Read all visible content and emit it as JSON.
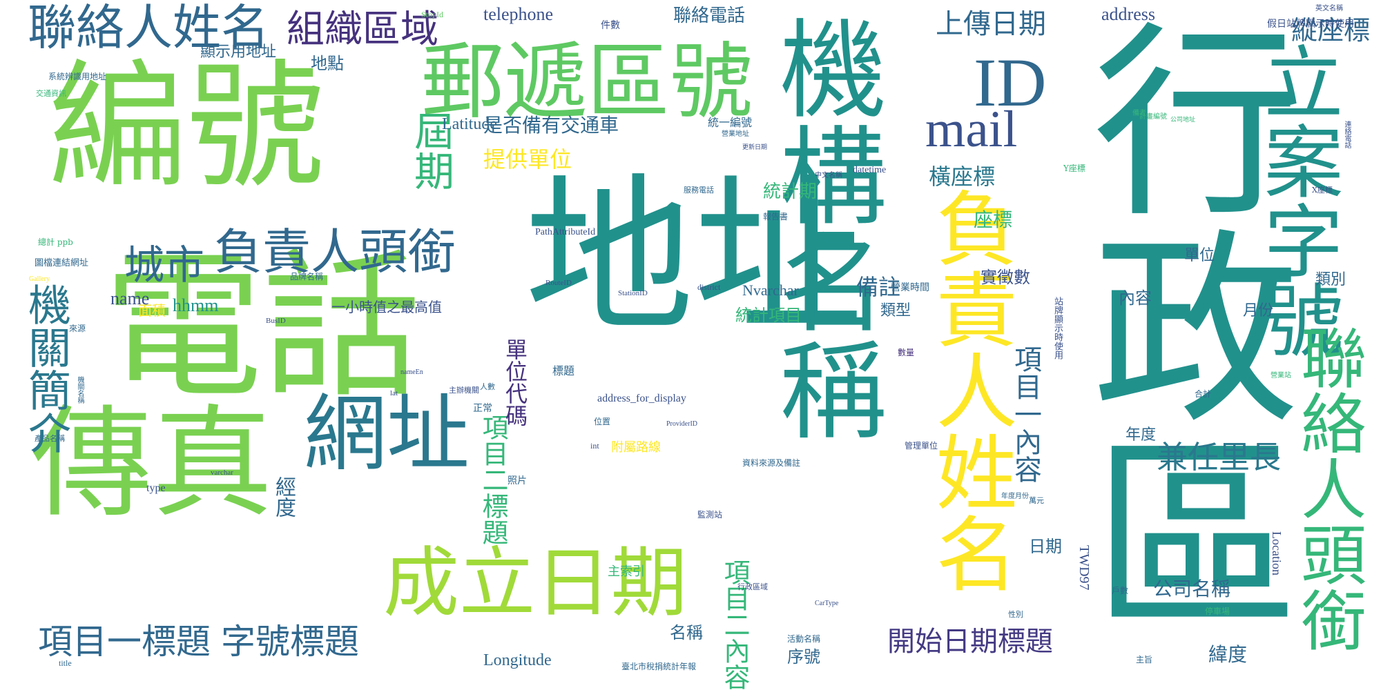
{
  "palette": {
    "teal": "#21918c",
    "teal_mid": "#27a783",
    "green": "#35b779",
    "lime": "#7ad151",
    "lime_light": "#a0da39",
    "yellow": "#fde725",
    "blue": "#31688e",
    "blue_dark": "#3b528b",
    "indigo": "#46327e",
    "purple": "#440154"
  },
  "words": [
    {
      "text": "行政區",
      "color": "#21918c"
    },
    {
      "text": "地址",
      "color": "#21918c"
    },
    {
      "text": "電話",
      "color": "#7ad151"
    },
    {
      "text": "編號",
      "color": "#7ad151"
    },
    {
      "text": "機構名稱",
      "color": "#21918c"
    },
    {
      "text": "傳真",
      "color": "#7ad151"
    },
    {
      "text": "郵遞區號",
      "color": "#5ec962"
    },
    {
      "text": "立案字號",
      "color": "#21918c"
    },
    {
      "text": "負責人姓名",
      "color": "#fde725"
    },
    {
      "text": "聯絡人頭銜",
      "color": "#35b779"
    },
    {
      "text": "網址",
      "color": "#2a788e"
    },
    {
      "text": "成立日期",
      "color": "#a0da39"
    },
    {
      "text": "ID",
      "color": "#31688e"
    },
    {
      "text": "mail",
      "color": "#3b528b"
    },
    {
      "text": "聯絡人姓名",
      "color": "#31688e"
    },
    {
      "text": "負責人頭銜",
      "color": "#31688e"
    },
    {
      "text": "組織區域",
      "color": "#46327e"
    },
    {
      "text": "機關簡介",
      "color": "#2a788e"
    },
    {
      "text": "城市",
      "color": "#31688e"
    },
    {
      "text": "項目一標題",
      "color": "#31688e"
    },
    {
      "text": "字號標題",
      "color": "#31688e"
    },
    {
      "text": "屆期",
      "color": "#35b779"
    },
    {
      "text": "兼任里長",
      "color": "#2a788e"
    },
    {
      "text": "開始日期標題",
      "color": "#443a83"
    },
    {
      "text": "項目一內容",
      "color": "#31688e"
    },
    {
      "text": "項目二標題",
      "color": "#35b779"
    },
    {
      "text": "項目二內容",
      "color": "#35b779"
    },
    {
      "text": "縱座標",
      "color": "#31688e"
    },
    {
      "text": "上傳日期",
      "color": "#31688e"
    },
    {
      "text": "提供單位",
      "color": "#fde725"
    },
    {
      "text": "是否備有交通車",
      "color": "#31688e"
    },
    {
      "text": "橫座標",
      "color": "#2a788e"
    },
    {
      "text": "單位代碼",
      "color": "#46327e"
    },
    {
      "text": "備註",
      "color": "#31688e"
    },
    {
      "text": "公司名稱",
      "color": "#31688e"
    },
    {
      "text": "address",
      "color": "#3b528b"
    },
    {
      "text": "telephone",
      "color": "#3b528b"
    },
    {
      "text": "Latitude",
      "color": "#31688e"
    },
    {
      "text": "Longitude",
      "color": "#31688e"
    },
    {
      "text": "name",
      "color": "#3b528b"
    },
    {
      "text": "hhmm",
      "color": "#21918c"
    },
    {
      "text": "座標",
      "color": "#35b779"
    },
    {
      "text": "統計期",
      "color": "#35b779"
    },
    {
      "text": "實徵數",
      "color": "#3b528b"
    },
    {
      "text": "緯度",
      "color": "#31688e"
    },
    {
      "text": "經度",
      "color": "#31688e"
    },
    {
      "text": "聯絡電話",
      "color": "#31688e"
    },
    {
      "text": "地點",
      "color": "#31688e"
    },
    {
      "text": "顯示用地址",
      "color": "#31688e"
    },
    {
      "text": "序號",
      "color": "#31688e"
    },
    {
      "text": "名稱",
      "color": "#31688e"
    },
    {
      "text": "面積",
      "color": "#fde725"
    },
    {
      "text": "統計項目",
      "color": "#35b779"
    },
    {
      "text": "日期",
      "color": "#31688e"
    },
    {
      "text": "內容",
      "color": "#31688e"
    },
    {
      "text": "單位",
      "color": "#31688e"
    },
    {
      "text": "年度",
      "color": "#31688e"
    },
    {
      "text": "月份",
      "color": "#31688e"
    },
    {
      "text": "類別",
      "color": "#31688e"
    },
    {
      "text": "類型",
      "color": "#31688e"
    },
    {
      "text": "Nvarchar",
      "color": "#31688e"
    },
    {
      "text": "TWD97",
      "color": "#3b528b"
    },
    {
      "text": "Location",
      "color": "#3b528b"
    },
    {
      "text": "一小時值之最高值",
      "color": "#3b528b"
    },
    {
      "text": "附屬路線",
      "color": "#fde725"
    },
    {
      "text": "主索引",
      "color": "#35b779"
    },
    {
      "text": "標題",
      "color": "#31688e"
    },
    {
      "text": "統一編號",
      "color": "#31688e"
    },
    {
      "text": "營業時間",
      "color": "#31688e"
    },
    {
      "text": "datetime",
      "color": "#3b528b"
    },
    {
      "text": "address_for_display",
      "color": "#3b528b"
    },
    {
      "text": "PathAttributeId",
      "color": "#3b528b"
    },
    {
      "text": "type",
      "color": "#3b528b"
    },
    {
      "text": "件數",
      "color": "#3b528b"
    },
    {
      "text": "StopId",
      "color": "#5ec962"
    },
    {
      "text": "假日站牌顯示時使用",
      "color": "#3b528b"
    },
    {
      "text": "站牌顯示時使用",
      "color": "#3b528b"
    },
    {
      "text": "系統辨識用地址",
      "color": "#31688e"
    },
    {
      "text": "交通資訊",
      "color": "#35b779"
    },
    {
      "text": "圖檔連結網址",
      "color": "#31688e"
    },
    {
      "text": "總計 ppb",
      "color": "#35b779"
    },
    {
      "text": "正常",
      "color": "#31688e"
    },
    {
      "text": "照片",
      "color": "#31688e"
    },
    {
      "text": "資料來源及備註",
      "color": "#31688e"
    },
    {
      "text": "管理單位",
      "color": "#3b528b"
    },
    {
      "text": "district",
      "color": "#3b528b"
    },
    {
      "text": "varchar",
      "color": "#3b528b"
    },
    {
      "text": "int",
      "color": "#3b528b"
    },
    {
      "text": "lat",
      "color": "#3b528b"
    },
    {
      "text": "title",
      "color": "#31688e"
    },
    {
      "text": "臺北市稅捐統計年報",
      "color": "#31688e"
    },
    {
      "text": "報告書",
      "color": "#31688e"
    },
    {
      "text": "計畫編號",
      "color": "#35b779"
    },
    {
      "text": "Y座標",
      "color": "#35b779"
    },
    {
      "text": "X座標",
      "color": "#3b528b"
    },
    {
      "text": "連絡電話",
      "color": "#3b528b"
    },
    {
      "text": "中文名稱",
      "color": "#3b528b"
    },
    {
      "text": "英文名稱",
      "color": "#3b528b"
    },
    {
      "text": "公司地址",
      "color": "#35b779"
    },
    {
      "text": "更新日期",
      "color": "#3b528b"
    },
    {
      "text": "營業站",
      "color": "#35b779"
    },
    {
      "text": "合計",
      "color": "#31688e"
    },
    {
      "text": "品牌名稱",
      "color": "#31688e"
    },
    {
      "text": "產品名稱",
      "color": "#31688e"
    },
    {
      "text": "機關名稱",
      "color": "#31688e"
    },
    {
      "text": "來源",
      "color": "#31688e"
    },
    {
      "text": "位置",
      "color": "#31688e"
    },
    {
      "text": "監測站",
      "color": "#3b528b"
    },
    {
      "text": "主辦機關",
      "color": "#3b528b"
    },
    {
      "text": "RouteID",
      "color": "#3b528b"
    },
    {
      "text": "StationID",
      "color": "#3b528b"
    },
    {
      "text": "BusID",
      "color": "#3b528b"
    },
    {
      "text": "ProviderID",
      "color": "#3b528b"
    },
    {
      "text": "CarType",
      "color": "#3b528b"
    },
    {
      "text": "nameEn",
      "color": "#3b528b"
    },
    {
      "text": "數量",
      "color": "#46327e"
    },
    {
      "text": "戶數",
      "color": "#31688e"
    },
    {
      "text": "年度月份",
      "color": "#31688e"
    },
    {
      "text": "停車場",
      "color": "#35b779"
    },
    {
      "text": "活動名稱",
      "color": "#31688e"
    },
    {
      "text": "行政區域",
      "color": "#3b528b"
    },
    {
      "text": "服務電話",
      "color": "#31688e"
    },
    {
      "text": "營業地址",
      "color": "#31688e"
    },
    {
      "text": "主旨",
      "color": "#31688e"
    },
    {
      "text": "萬元",
      "color": "#31688e"
    },
    {
      "text": "人數",
      "color": "#31688e"
    },
    {
      "text": "性別",
      "color": "#31688e"
    },
    {
      "text": "備考",
      "color": "#35b779"
    },
    {
      "text": "Gallery",
      "color": "#fde725"
    }
  ]
}
